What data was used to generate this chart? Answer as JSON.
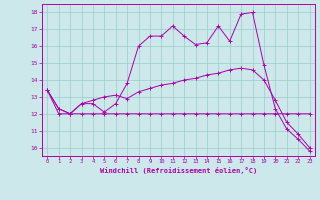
{
  "xlabel": "Windchill (Refroidissement éolien,°C)",
  "background_color": "#cce8ea",
  "line_color": "#aa00aa",
  "grid_color": "#99cccc",
  "xlim": [
    -0.5,
    23.5
  ],
  "ylim": [
    9.5,
    18.5
  ],
  "yticks": [
    10,
    11,
    12,
    13,
    14,
    15,
    16,
    17,
    18
  ],
  "xticks": [
    0,
    1,
    2,
    3,
    4,
    5,
    6,
    7,
    8,
    9,
    10,
    11,
    12,
    13,
    14,
    15,
    16,
    17,
    18,
    19,
    20,
    21,
    22,
    23
  ],
  "line1_x": [
    0,
    1,
    2,
    3,
    4,
    5,
    6,
    7,
    8,
    9,
    10,
    11,
    12,
    13,
    14,
    15,
    16,
    17,
    18,
    19,
    20,
    21,
    22,
    23
  ],
  "line1_y": [
    13.4,
    12.3,
    12.0,
    12.6,
    12.6,
    12.1,
    12.6,
    13.8,
    16.0,
    16.6,
    16.6,
    17.2,
    16.6,
    16.1,
    16.2,
    17.2,
    16.3,
    17.9,
    18.0,
    14.9,
    12.3,
    11.1,
    10.5,
    9.8
  ],
  "line2_x": [
    0,
    1,
    2,
    3,
    4,
    5,
    6,
    7,
    8,
    9,
    10,
    11,
    12,
    13,
    14,
    15,
    16,
    17,
    18,
    19,
    20,
    21,
    22,
    23
  ],
  "line2_y": [
    13.4,
    12.0,
    12.0,
    12.0,
    12.0,
    12.0,
    12.0,
    12.0,
    12.0,
    12.0,
    12.0,
    12.0,
    12.0,
    12.0,
    12.0,
    12.0,
    12.0,
    12.0,
    12.0,
    12.0,
    12.0,
    12.0,
    12.0,
    12.0
  ],
  "line3_x": [
    0,
    1,
    2,
    3,
    4,
    5,
    6,
    7,
    8,
    9,
    10,
    11,
    12,
    13,
    14,
    15,
    16,
    17,
    18,
    19,
    20,
    21,
    22,
    23
  ],
  "line3_y": [
    13.4,
    12.3,
    12.0,
    12.6,
    12.8,
    13.0,
    13.1,
    12.9,
    13.3,
    13.5,
    13.7,
    13.8,
    14.0,
    14.1,
    14.3,
    14.4,
    14.6,
    14.7,
    14.6,
    14.0,
    12.8,
    11.5,
    10.8,
    10.0
  ]
}
